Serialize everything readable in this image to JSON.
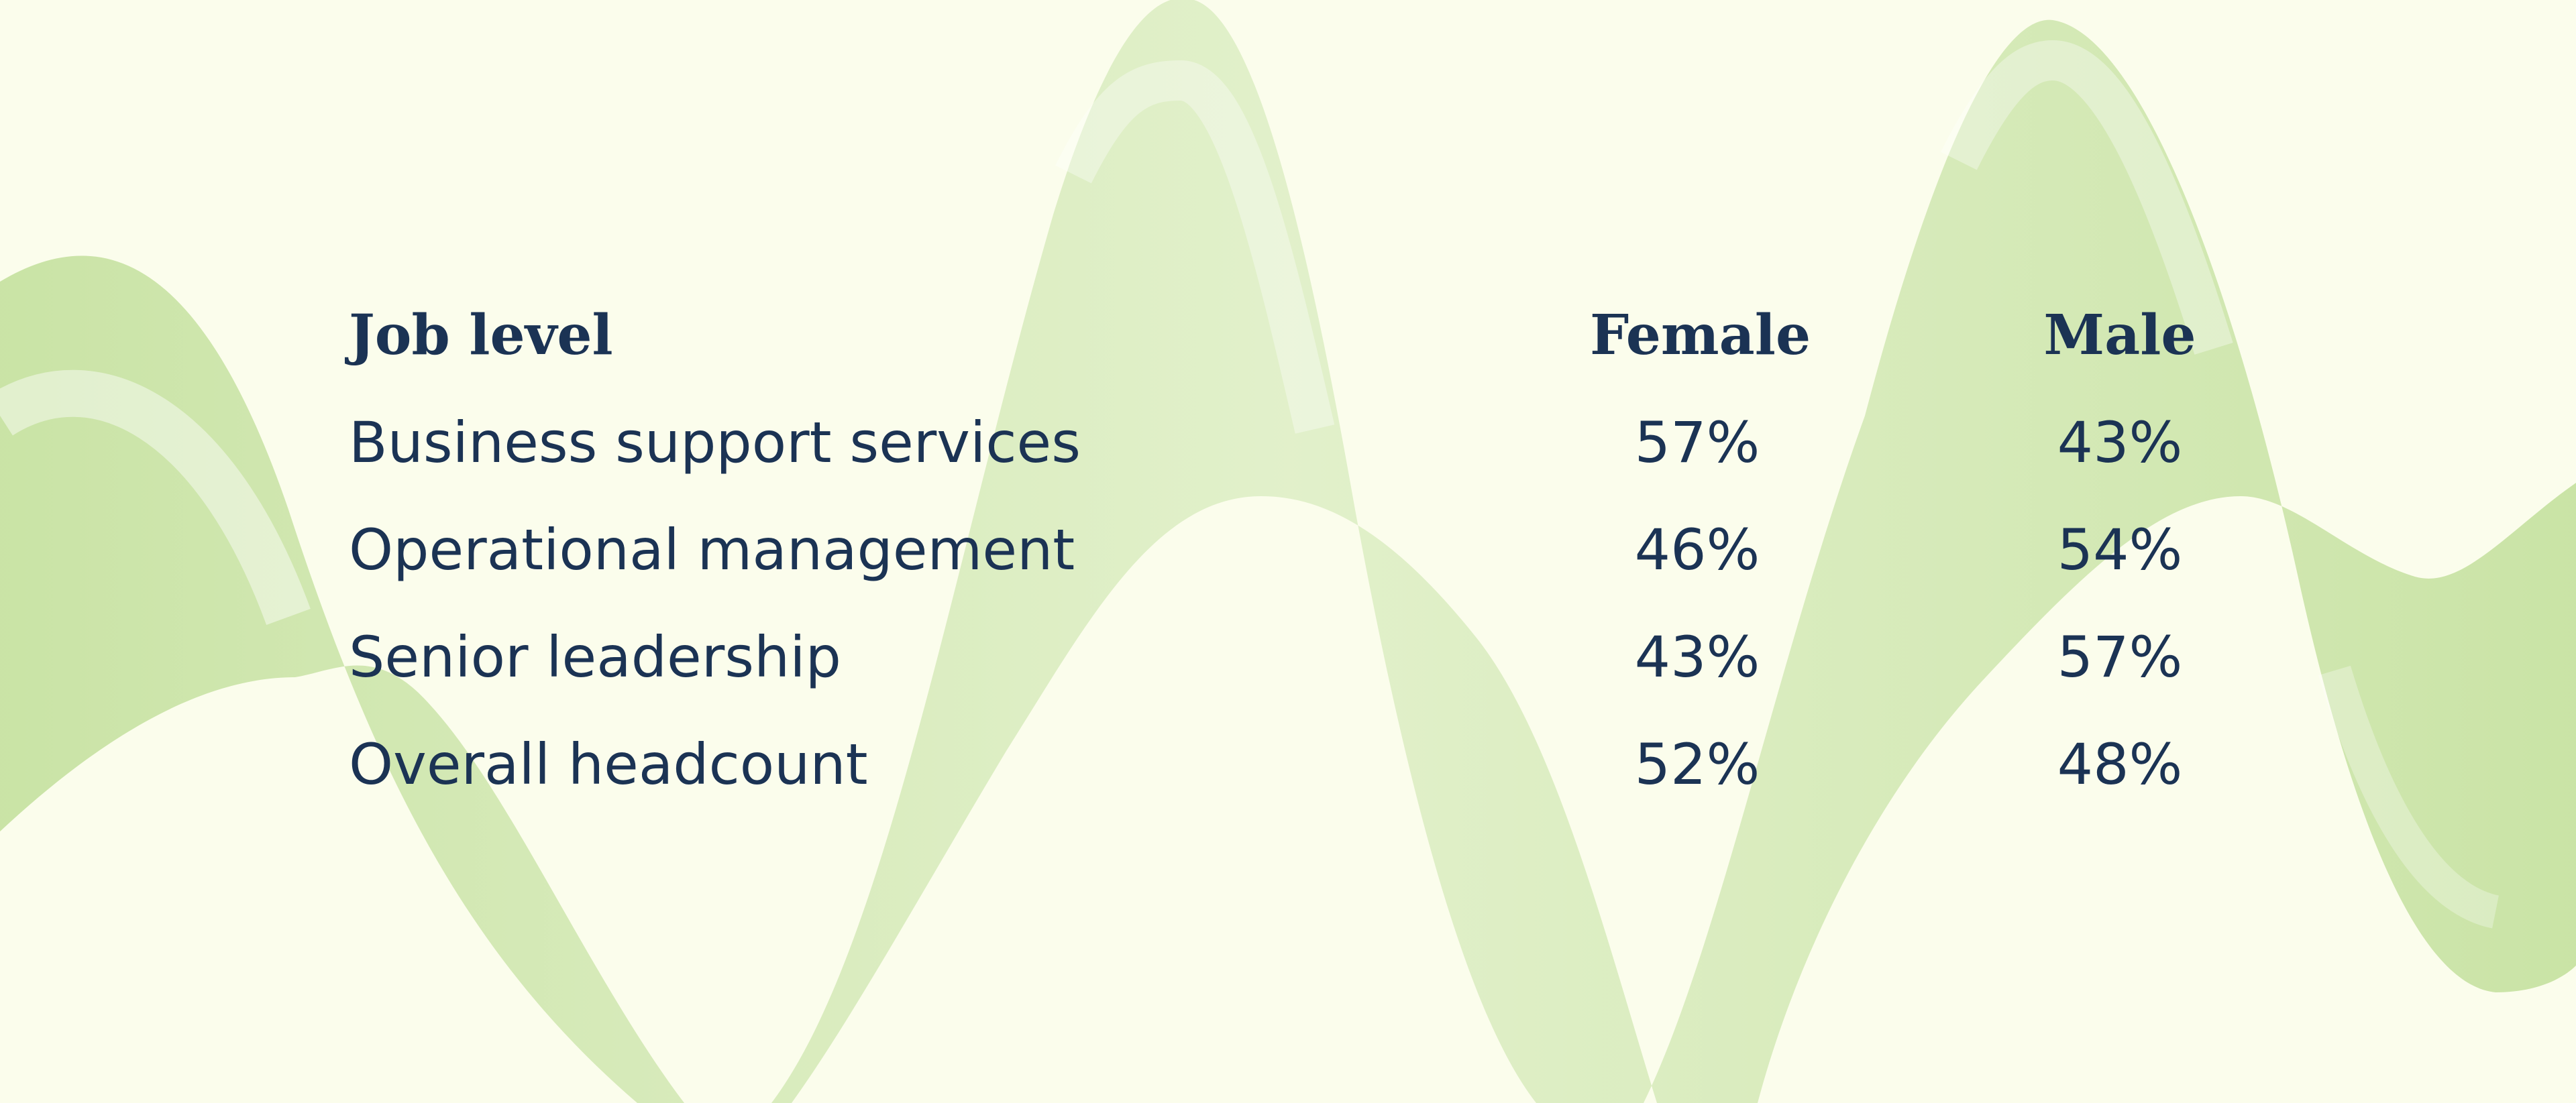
{
  "colors": {
    "background": "#fbfdec",
    "text": "#1b3354",
    "wave": "#c7e2a2"
  },
  "table": {
    "headers": {
      "job_level": "Job level",
      "female": "Female",
      "male": "Male"
    },
    "rows": [
      {
        "label": "Business support services",
        "female": "57%",
        "male": "43%"
      },
      {
        "label": "Operational management",
        "female": "46%",
        "male": "54%"
      },
      {
        "label": "Senior leadership",
        "female": "43%",
        "male": "57%"
      },
      {
        "label": "Overall headcount",
        "female": "52%",
        "male": "48%"
      }
    ]
  }
}
